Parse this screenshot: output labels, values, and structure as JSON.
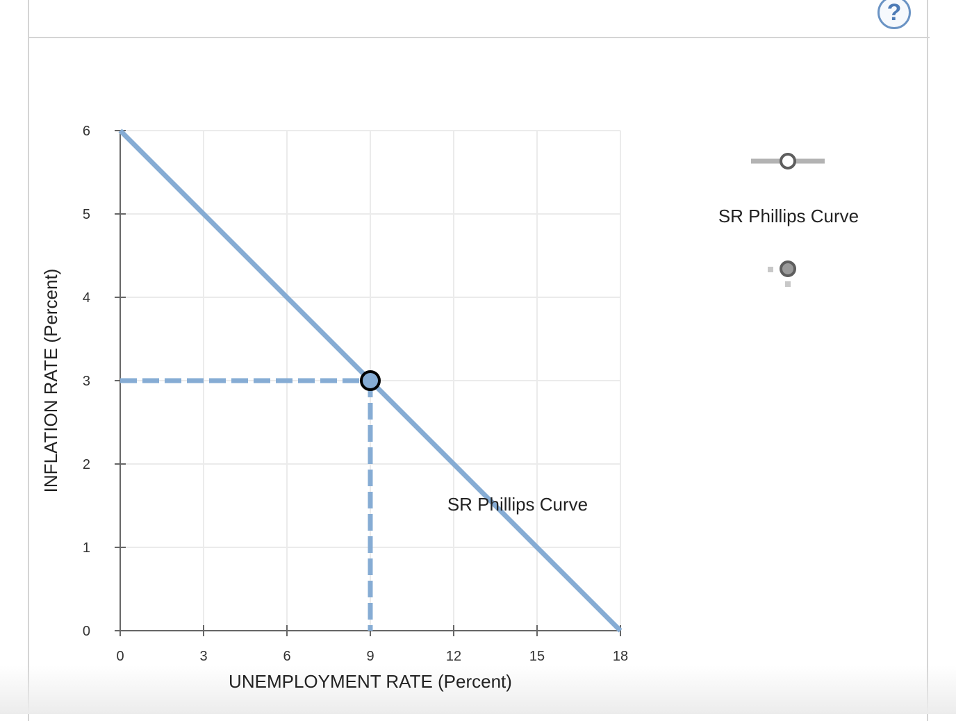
{
  "help": {
    "label": "?"
  },
  "legend": {
    "curve_tool_label": "SR Phillips Curve",
    "curve_tool_icon": "line-with-circle-icon",
    "point_tool_icon": "dotted-point-icon",
    "curve_tool_color": "#b3b3b3",
    "point_tool_color": "#9a9a9a"
  },
  "chart_data": {
    "type": "line",
    "xlabel": "UNEMPLOYMENT RATE (Percent)",
    "ylabel": "INFLATION RATE (Percent)",
    "xlim": [
      0,
      18
    ],
    "ylim": [
      0,
      6
    ],
    "x_ticks": [
      0,
      3,
      6,
      9,
      12,
      15,
      18
    ],
    "y_ticks": [
      0,
      1,
      2,
      3,
      4,
      5,
      6
    ],
    "grid": true,
    "series": [
      {
        "name": "SR Phillips Curve",
        "color": "#86acd4",
        "x": [
          0,
          18
        ],
        "y": [
          6,
          0
        ]
      }
    ],
    "point": {
      "x": 9,
      "y": 3,
      "fill": "#86acd4",
      "stroke": "#000000"
    },
    "guides": {
      "x": 9,
      "y": 3,
      "style": "dashed",
      "color": "#86acd4"
    },
    "annotations": [
      {
        "text": "SR Phillips Curve",
        "x": 14.3,
        "y": 1.5
      }
    ]
  }
}
